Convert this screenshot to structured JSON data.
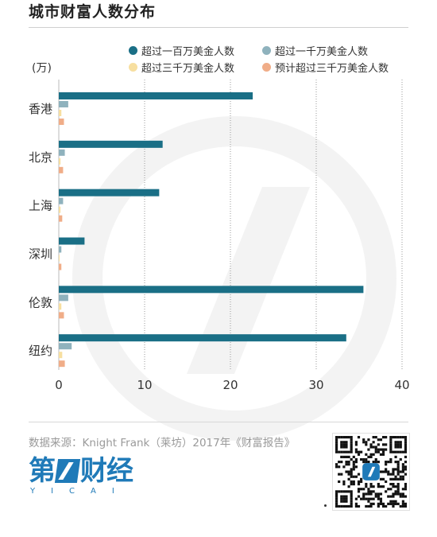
{
  "title": "城市财富人数分布",
  "unit": "(万)",
  "source": "数据来源：Knight Frank（莱坊）2017年《财富报告》",
  "logo": {
    "main_a": "第",
    "main_b": "财经",
    "sub": "YICAI"
  },
  "colors": {
    "series1": "#1a6f86",
    "series2": "#8fb2bd",
    "series3": "#f7dfa0",
    "series4": "#f0ad88",
    "grid": "#9a9a9a",
    "axis": "#bbbbbb",
    "logo": "#1f7ab8"
  },
  "chart_data": {
    "type": "bar",
    "orientation": "horizontal",
    "categories": [
      "香港",
      "北京",
      "上海",
      "深圳",
      "伦敦",
      "纽约"
    ],
    "series": [
      {
        "name": "超过一百万美金人数",
        "values": [
          22.6,
          12.1,
          11.7,
          3.0,
          35.5,
          33.5
        ]
      },
      {
        "name": "超过一千万美金人数",
        "values": [
          1.1,
          0.7,
          0.5,
          0.3,
          1.1,
          1.5
        ]
      },
      {
        "name": "超过三千万美金人数",
        "values": [
          0.3,
          0.2,
          0.2,
          0.1,
          0.3,
          0.4
        ]
      },
      {
        "name": "预计超过三千万美金人数",
        "values": [
          0.6,
          0.5,
          0.4,
          0.3,
          0.6,
          0.7
        ]
      }
    ],
    "xlim": [
      0,
      40
    ],
    "xticks": [
      0,
      10,
      20,
      30,
      40
    ],
    "ylabel": "(万)",
    "grid": "vertical dotted",
    "legend_position": "top-right"
  }
}
